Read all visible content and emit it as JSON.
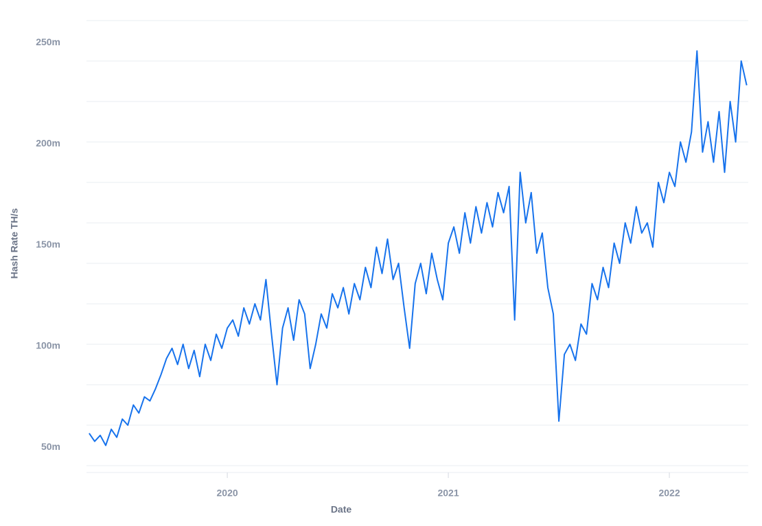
{
  "chart_data": {
    "type": "line",
    "x_label": "Date",
    "y_label": "Hash Rate TH/s",
    "x": [
      2019.375,
      2019.4,
      2019.425,
      2019.45,
      2019.475,
      2019.5,
      2019.525,
      2019.55,
      2019.575,
      2019.6,
      2019.625,
      2019.65,
      2019.675,
      2019.7,
      2019.725,
      2019.75,
      2019.775,
      2019.8,
      2019.825,
      2019.85,
      2019.875,
      2019.9,
      2019.925,
      2019.95,
      2019.975,
      2020.0,
      2020.025,
      2020.05,
      2020.075,
      2020.1,
      2020.125,
      2020.15,
      2020.175,
      2020.2,
      2020.225,
      2020.25,
      2020.275,
      2020.3,
      2020.325,
      2020.35,
      2020.375,
      2020.4,
      2020.425,
      2020.45,
      2020.475,
      2020.5,
      2020.525,
      2020.55,
      2020.575,
      2020.6,
      2020.625,
      2020.65,
      2020.675,
      2020.7,
      2020.725,
      2020.75,
      2020.775,
      2020.8,
      2020.825,
      2020.85,
      2020.875,
      2020.9,
      2020.925,
      2020.95,
      2020.975,
      2021.0,
      2021.025,
      2021.05,
      2021.075,
      2021.1,
      2021.125,
      2021.15,
      2021.175,
      2021.2,
      2021.225,
      2021.25,
      2021.275,
      2021.3,
      2021.325,
      2021.35,
      2021.375,
      2021.4,
      2021.425,
      2021.45,
      2021.475,
      2021.5,
      2021.525,
      2021.55,
      2021.575,
      2021.6,
      2021.625,
      2021.65,
      2021.675,
      2021.7,
      2021.725,
      2021.75,
      2021.775,
      2021.8,
      2021.825,
      2021.85,
      2021.875,
      2021.9,
      2021.925,
      2021.95,
      2021.975,
      2022.0,
      2022.025,
      2022.05,
      2022.075,
      2022.1,
      2022.125,
      2022.15,
      2022.175,
      2022.2,
      2022.225,
      2022.25,
      2022.275,
      2022.3,
      2022.325,
      2022.35
    ],
    "series": [
      {
        "color": "#1672ec",
        "values": [
          56,
          52,
          55,
          50,
          58,
          54,
          63,
          60,
          70,
          66,
          74,
          72,
          78,
          85,
          93,
          98,
          90,
          100,
          88,
          97,
          84,
          100,
          92,
          105,
          98,
          108,
          112,
          104,
          118,
          110,
          120,
          112,
          132,
          105,
          80,
          108,
          118,
          102,
          122,
          115,
          88,
          100,
          115,
          108,
          125,
          118,
          128,
          115,
          130,
          122,
          138,
          128,
          148,
          135,
          152,
          132,
          140,
          118,
          98,
          130,
          140,
          125,
          145,
          132,
          122,
          150,
          158,
          145,
          165,
          150,
          168,
          155,
          170,
          158,
          175,
          165,
          178,
          112,
          185,
          160,
          175,
          145,
          155,
          128,
          115,
          62,
          95,
          100,
          92,
          110,
          105,
          130,
          122,
          138,
          128,
          150,
          140,
          160,
          150,
          168,
          155,
          160,
          148,
          180,
          170,
          185,
          178,
          200,
          190,
          205,
          245,
          195,
          210,
          190,
          215,
          185,
          220,
          200,
          240,
          228
        ]
      }
    ],
    "xlim": [
      2019.363,
      2022.357
    ],
    "xticks": [
      2020,
      2021,
      2022
    ],
    "ylim": [
      40,
      260
    ],
    "yticks": [
      {
        "value": 50,
        "label": "50m"
      },
      {
        "value": 100,
        "label": "100m"
      },
      {
        "value": 150,
        "label": "150m"
      },
      {
        "value": 200,
        "label": "200m"
      },
      {
        "value": 250,
        "label": "250m"
      }
    ],
    "ygrid": [
      40,
      60,
      80,
      100,
      120,
      140,
      160,
      180,
      200,
      220,
      240,
      260
    ],
    "grid": true
  }
}
